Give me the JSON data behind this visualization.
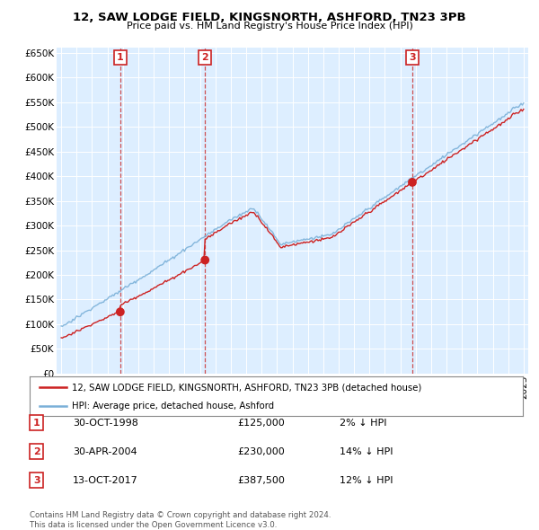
{
  "title": "12, SAW LODGE FIELD, KINGSNORTH, ASHFORD, TN23 3PB",
  "subtitle": "Price paid vs. HM Land Registry's House Price Index (HPI)",
  "ylim": [
    0,
    650000
  ],
  "yticks": [
    0,
    50000,
    100000,
    150000,
    200000,
    250000,
    300000,
    350000,
    400000,
    450000,
    500000,
    550000,
    600000,
    650000
  ],
  "background_color": "#ffffff",
  "plot_bg_color": "#ddeeff",
  "plot_bg_color2": "#e8e8e8",
  "grid_color": "#ffffff",
  "hpi_color": "#7ab0d8",
  "price_color": "#cc2222",
  "vline_color": "#cc3333",
  "transactions": [
    {
      "num": 1,
      "date_x": 1998.83,
      "price": 125000,
      "date_str": "30-OCT-1998",
      "pct": "2%",
      "direction": "↓"
    },
    {
      "num": 2,
      "date_x": 2004.33,
      "price": 230000,
      "date_str": "30-APR-2004",
      "pct": "14%",
      "direction": "↓"
    },
    {
      "num": 3,
      "date_x": 2017.78,
      "price": 387500,
      "date_str": "13-OCT-2017",
      "pct": "12%",
      "direction": "↓"
    }
  ],
  "legend_label_price": "12, SAW LODGE FIELD, KINGSNORTH, ASHFORD, TN23 3PB (detached house)",
  "legend_label_hpi": "HPI: Average price, detached house, Ashford",
  "footer": "Contains HM Land Registry data © Crown copyright and database right 2024.\nThis data is licensed under the Open Government Licence v3.0.",
  "table_rows": [
    [
      "1",
      "30-OCT-1998",
      "£125,000",
      "2% ↓ HPI"
    ],
    [
      "2",
      "30-APR-2004",
      "£230,000",
      "14% ↓ HPI"
    ],
    [
      "3",
      "13-OCT-2017",
      "£387,500",
      "12% ↓ HPI"
    ]
  ],
  "xmin": 1995,
  "xmax": 2025
}
